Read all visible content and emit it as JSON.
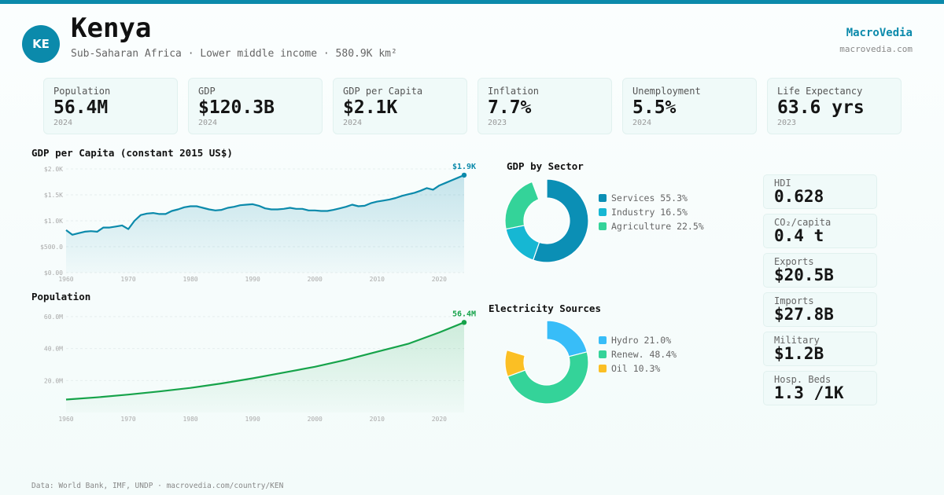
{
  "header": {
    "code": "KE",
    "country": "Kenya",
    "subtitle": "Sub-Saharan Africa · Lower middle income · 580.9K km²",
    "brand": "MacroVedia",
    "brand_url": "macrovedia.com"
  },
  "stats": [
    {
      "label": "Population",
      "value": "56.4M",
      "year": "2024"
    },
    {
      "label": "GDP",
      "value": "$120.3B",
      "year": "2024"
    },
    {
      "label": "GDP per Capita",
      "value": "$2.1K",
      "year": "2024"
    },
    {
      "label": "Inflation",
      "value": "7.7%",
      "year": "2023"
    },
    {
      "label": "Unemployment",
      "value": "5.5%",
      "year": "2024"
    },
    {
      "label": "Life Expectancy",
      "value": "63.6 yrs",
      "year": "2023"
    }
  ],
  "side_stats": [
    {
      "label": "HDI",
      "value": "0.628"
    },
    {
      "label": "CO₂/capita",
      "value": "0.4 t"
    },
    {
      "label": "Exports",
      "value": "$20.5B"
    },
    {
      "label": "Imports",
      "value": "$27.8B"
    },
    {
      "label": "Military",
      "value": "$1.2B"
    },
    {
      "label": "Hosp. Beds",
      "value": "1.3 /1K"
    }
  ],
  "footer": "Data: World Bank, IMF, UNDP · macrovedia.com/country/KEN",
  "colors": {
    "accent": "#0b8aab",
    "gdp_line": "#0b8aab",
    "pop_line": "#16a34a"
  },
  "chart_data": [
    {
      "type": "area",
      "title": "GDP per Capita (constant 2015 US$)",
      "end_label": "$1.9K",
      "x": [
        1960,
        1961,
        1962,
        1963,
        1964,
        1965,
        1966,
        1967,
        1968,
        1969,
        1970,
        1971,
        1972,
        1973,
        1974,
        1975,
        1976,
        1977,
        1978,
        1979,
        1980,
        1981,
        1982,
        1983,
        1984,
        1985,
        1986,
        1987,
        1988,
        1989,
        1990,
        1991,
        1992,
        1993,
        1994,
        1995,
        1996,
        1997,
        1998,
        1999,
        2000,
        2001,
        2002,
        2003,
        2004,
        2005,
        2006,
        2007,
        2008,
        2009,
        2010,
        2011,
        2012,
        2013,
        2014,
        2015,
        2016,
        2017,
        2018,
        2019,
        2020,
        2021,
        2022,
        2023,
        2024
      ],
      "y": [
        820,
        730,
        760,
        790,
        800,
        790,
        870,
        870,
        890,
        910,
        840,
        1000,
        1110,
        1140,
        1150,
        1130,
        1130,
        1190,
        1220,
        1260,
        1280,
        1280,
        1250,
        1220,
        1200,
        1210,
        1250,
        1270,
        1300,
        1310,
        1320,
        1290,
        1240,
        1220,
        1220,
        1230,
        1250,
        1230,
        1230,
        1200,
        1200,
        1190,
        1190,
        1210,
        1240,
        1270,
        1310,
        1280,
        1290,
        1340,
        1370,
        1390,
        1410,
        1440,
        1480,
        1510,
        1540,
        1580,
        1630,
        1600,
        1680,
        1730,
        1780,
        1830,
        1880
      ],
      "xticks": [
        "1960",
        "1970",
        "1980",
        "1990",
        "2000",
        "2010",
        "2020"
      ],
      "yticks": [
        "$0.00",
        "$500.0",
        "$1.0K",
        "$1.5K",
        "$2.0K"
      ],
      "ylim": [
        0,
        2000
      ]
    },
    {
      "type": "area",
      "title": "Population",
      "end_label": "56.4M",
      "x": [
        1960,
        1965,
        1970,
        1975,
        1980,
        1985,
        1990,
        1995,
        2000,
        2005,
        2010,
        2015,
        2020,
        2024
      ],
      "y": [
        8.1,
        9.5,
        11.2,
        13.2,
        15.4,
        18.2,
        21.4,
        25.0,
        28.6,
        33.0,
        38.0,
        43.0,
        50.1,
        56.4
      ],
      "xticks": [
        "1960",
        "1970",
        "1980",
        "1990",
        "2000",
        "2010",
        "2020"
      ],
      "yticks": [
        "20.0M",
        "40.0M",
        "60.0M"
      ],
      "ylim": [
        0,
        60
      ]
    },
    {
      "type": "pie",
      "title": "GDP by Sector",
      "labels": [
        "Services",
        "Industry",
        "Agriculture"
      ],
      "values": [
        55.3,
        16.5,
        22.5
      ],
      "legend": [
        "Services 55.3%",
        "Industry 16.5%",
        "Agriculture 22.5%"
      ],
      "colors": [
        "#0b8fb5",
        "#16b7d3",
        "#34d399"
      ]
    },
    {
      "type": "pie",
      "title": "Electricity Sources",
      "labels": [
        "Hydro",
        "Renew.",
        "Oil"
      ],
      "values": [
        21.0,
        48.4,
        10.3
      ],
      "legend": [
        "Hydro 21.0%",
        "Renew. 48.4%",
        "Oil 10.3%"
      ],
      "colors": [
        "#38bdf8",
        "#34d399",
        "#fbbf24"
      ]
    }
  ]
}
